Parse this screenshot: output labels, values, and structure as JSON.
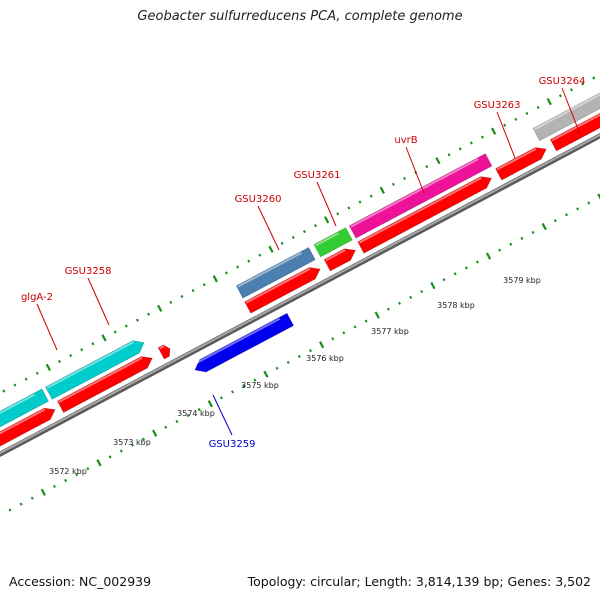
{
  "header": {
    "title": "Geobacter sulfurreducens PCA, complete genome"
  },
  "footer": {
    "accession": "Accession: NC_002939",
    "summary": "Topology: circular; Length: 3,814,139 bp; Genes: 3,502"
  },
  "colors": {
    "backbone": "#808080",
    "cds": "#ff0000",
    "gene_label_red": "#cc0000",
    "gene_label_blue": "#0000cc",
    "tick": "#1a8c1a",
    "gene_cyan": "#00cccc",
    "gene_steelblue": "#4a7fb0",
    "gene_green": "#33cc33",
    "gene_magenta": "#ee1199",
    "gene_gray": "#b3b3b3",
    "gene_blue": "#0000ee"
  },
  "axis": {
    "scale_labels": [
      "3572 kbp",
      "3573 kbp",
      "3574 kbp",
      "3575 kbp",
      "3576 kbp",
      "3577 kbp",
      "3578 kbp",
      "3579 kbp"
    ]
  },
  "genes": {
    "forward": [
      {
        "label": "glgA-2",
        "color": "gene_cyan",
        "label_color": "gene_label_red"
      },
      {
        "label": "GSU3258",
        "color": "gene_cyan",
        "label_color": "gene_label_red"
      },
      {
        "label": "GSU3260",
        "color": "gene_steelblue",
        "label_color": "gene_label_red"
      },
      {
        "label": "GSU3261",
        "color": "gene_green",
        "label_color": "gene_label_red"
      },
      {
        "label": "uvrB",
        "color": "gene_magenta",
        "label_color": "gene_label_red"
      },
      {
        "label": "GSU3263",
        "color": "gene_gray",
        "label_color": "gene_label_red"
      },
      {
        "label": "GSU3264",
        "color": "gene_gray",
        "label_color": "gene_label_red"
      }
    ],
    "reverse": [
      {
        "label": "GSU3259",
        "color": "gene_blue",
        "label_color": "gene_label_blue"
      }
    ]
  }
}
